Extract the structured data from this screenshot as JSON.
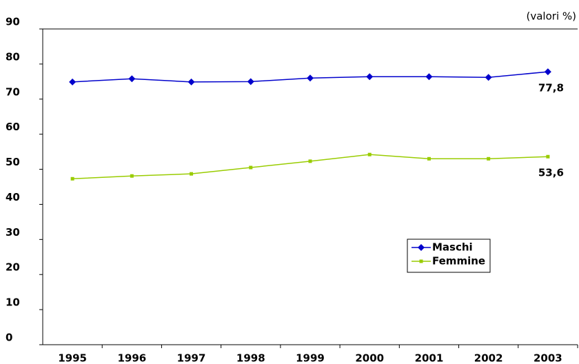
{
  "chart_data": {
    "type": "line",
    "annotation": "(valori %)",
    "categories": [
      "1995",
      "1996",
      "1997",
      "1998",
      "1999",
      "2000",
      "2001",
      "2002",
      "2003"
    ],
    "series": [
      {
        "name": "Maschi",
        "color": "#0000cc",
        "marker": "diamond",
        "values": [
          74.9,
          75.8,
          74.9,
          75.0,
          76.0,
          76.4,
          76.4,
          76.2,
          77.8
        ],
        "value_labels": [
          null,
          null,
          null,
          null,
          null,
          null,
          null,
          null,
          "77,8"
        ]
      },
      {
        "name": "Femmine",
        "color": "#99cc00",
        "marker": "square",
        "values": [
          47.3,
          48.1,
          48.7,
          50.5,
          52.3,
          54.2,
          53.0,
          53.0,
          53.6
        ],
        "value_labels": [
          null,
          null,
          null,
          null,
          null,
          null,
          null,
          null,
          "53,6"
        ]
      }
    ],
    "ylim": [
      0,
      90
    ],
    "yticks": [
      0,
      10,
      20,
      30,
      40,
      50,
      60,
      70,
      80,
      90
    ],
    "grid": false,
    "legend": "inside-lower-right"
  }
}
